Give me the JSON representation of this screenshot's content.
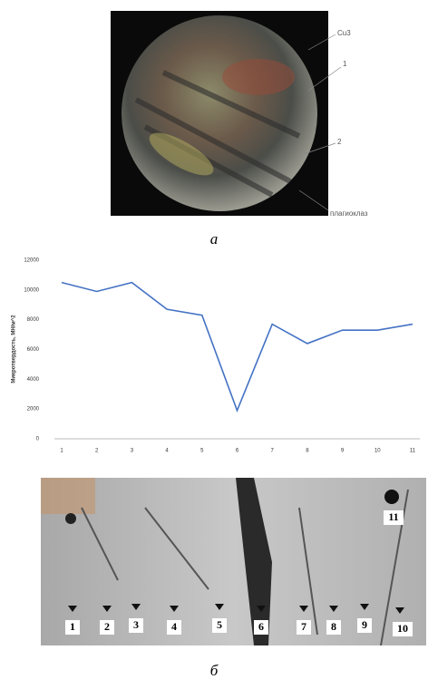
{
  "figure": {
    "top_image_labels": [
      "Cu3",
      "1",
      "2",
      "плагиоклаз"
    ],
    "caption_a": "а",
    "caption_b": "б",
    "bottom_image_labels": [
      "1",
      "2",
      "3",
      "4",
      "5",
      "6",
      "7",
      "8",
      "9",
      "10",
      "11"
    ]
  },
  "chart_data": {
    "type": "line",
    "y_label": "Микротвердость, МН/м^2",
    "categories": [
      "1",
      "2",
      "3",
      "4",
      "5",
      "6",
      "7",
      "8",
      "9",
      "10",
      "11"
    ],
    "values": [
      10500,
      9900,
      10500,
      8700,
      8300,
      1900,
      7700,
      6400,
      7300,
      7300,
      7700
    ],
    "color": "#4472c4",
    "ylim": [
      0,
      12000
    ],
    "yticks": [
      0,
      2000,
      4000,
      6000,
      8000,
      10000,
      12000
    ],
    "grid": false
  }
}
